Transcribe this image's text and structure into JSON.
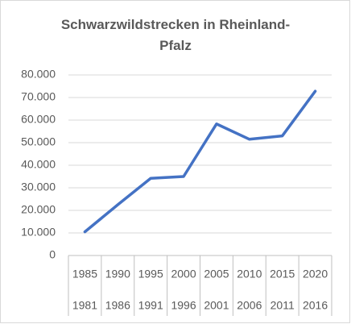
{
  "chart_data": {
    "type": "line",
    "title": "Schwarzwildstrecken in Rheinland-Pfalz",
    "categories": [
      "1985",
      "1990",
      "1995",
      "2000",
      "2005",
      "2010",
      "2015",
      "2020"
    ],
    "category_groups": [
      "1981",
      "1986",
      "1991",
      "1996",
      "2001",
      "2006",
      "2011",
      "2016"
    ],
    "values": [
      10500,
      22500,
      34200,
      35000,
      58300,
      51500,
      53000,
      72800
    ],
    "color": "#4472c4",
    "ylim": [
      0,
      80000
    ],
    "yticks": [
      0,
      {
        "value": 10000,
        "label": "10.000"
      },
      {
        "value": 20000,
        "label": "20.000"
      },
      {
        "value": 30000,
        "label": "30.000"
      },
      {
        "value": 40000,
        "label": "40.000"
      },
      {
        "value": 50000,
        "label": "50.000"
      },
      {
        "value": 60000,
        "label": "60.000"
      },
      {
        "value": 70000,
        "label": "70.000"
      },
      {
        "value": 80000,
        "label": "80.000"
      }
    ],
    "grid": true
  }
}
